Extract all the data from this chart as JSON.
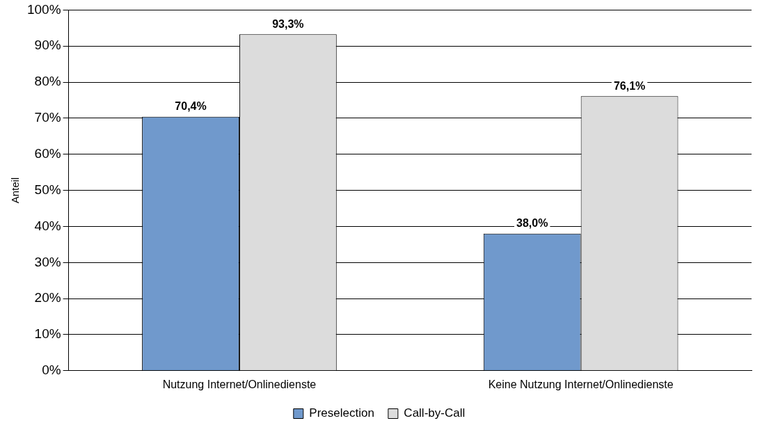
{
  "chart_data": {
    "type": "bar",
    "ylabel": "Anteil",
    "categories": [
      "Nutzung Internet/Onlinedienste",
      "Keine Nutzung Internet/Onlinedienste"
    ],
    "series": [
      {
        "name": "Preselection",
        "color": "#7099cc",
        "values": [
          70.4,
          38.0
        ],
        "value_labels": [
          "70,4%",
          "38,0%"
        ]
      },
      {
        "name": "Call-by-Call",
        "color": "#dcdcdc",
        "values": [
          93.3,
          76.1
        ],
        "value_labels": [
          "93,3%",
          "76,1%"
        ]
      }
    ],
    "ylim": [
      0,
      100
    ],
    "yticks": [
      {
        "value": 0,
        "label": "0%"
      },
      {
        "value": 10,
        "label": "10%"
      },
      {
        "value": 20,
        "label": "20%"
      },
      {
        "value": 30,
        "label": "30%"
      },
      {
        "value": 40,
        "label": "40%"
      },
      {
        "value": 50,
        "label": "50%"
      },
      {
        "value": 60,
        "label": "60%"
      },
      {
        "value": 70,
        "label": "70%"
      },
      {
        "value": 80,
        "label": "80%"
      },
      {
        "value": 90,
        "label": "90%"
      },
      {
        "value": 100,
        "label": "100%"
      }
    ],
    "grid": "y",
    "legend": "bottom"
  }
}
